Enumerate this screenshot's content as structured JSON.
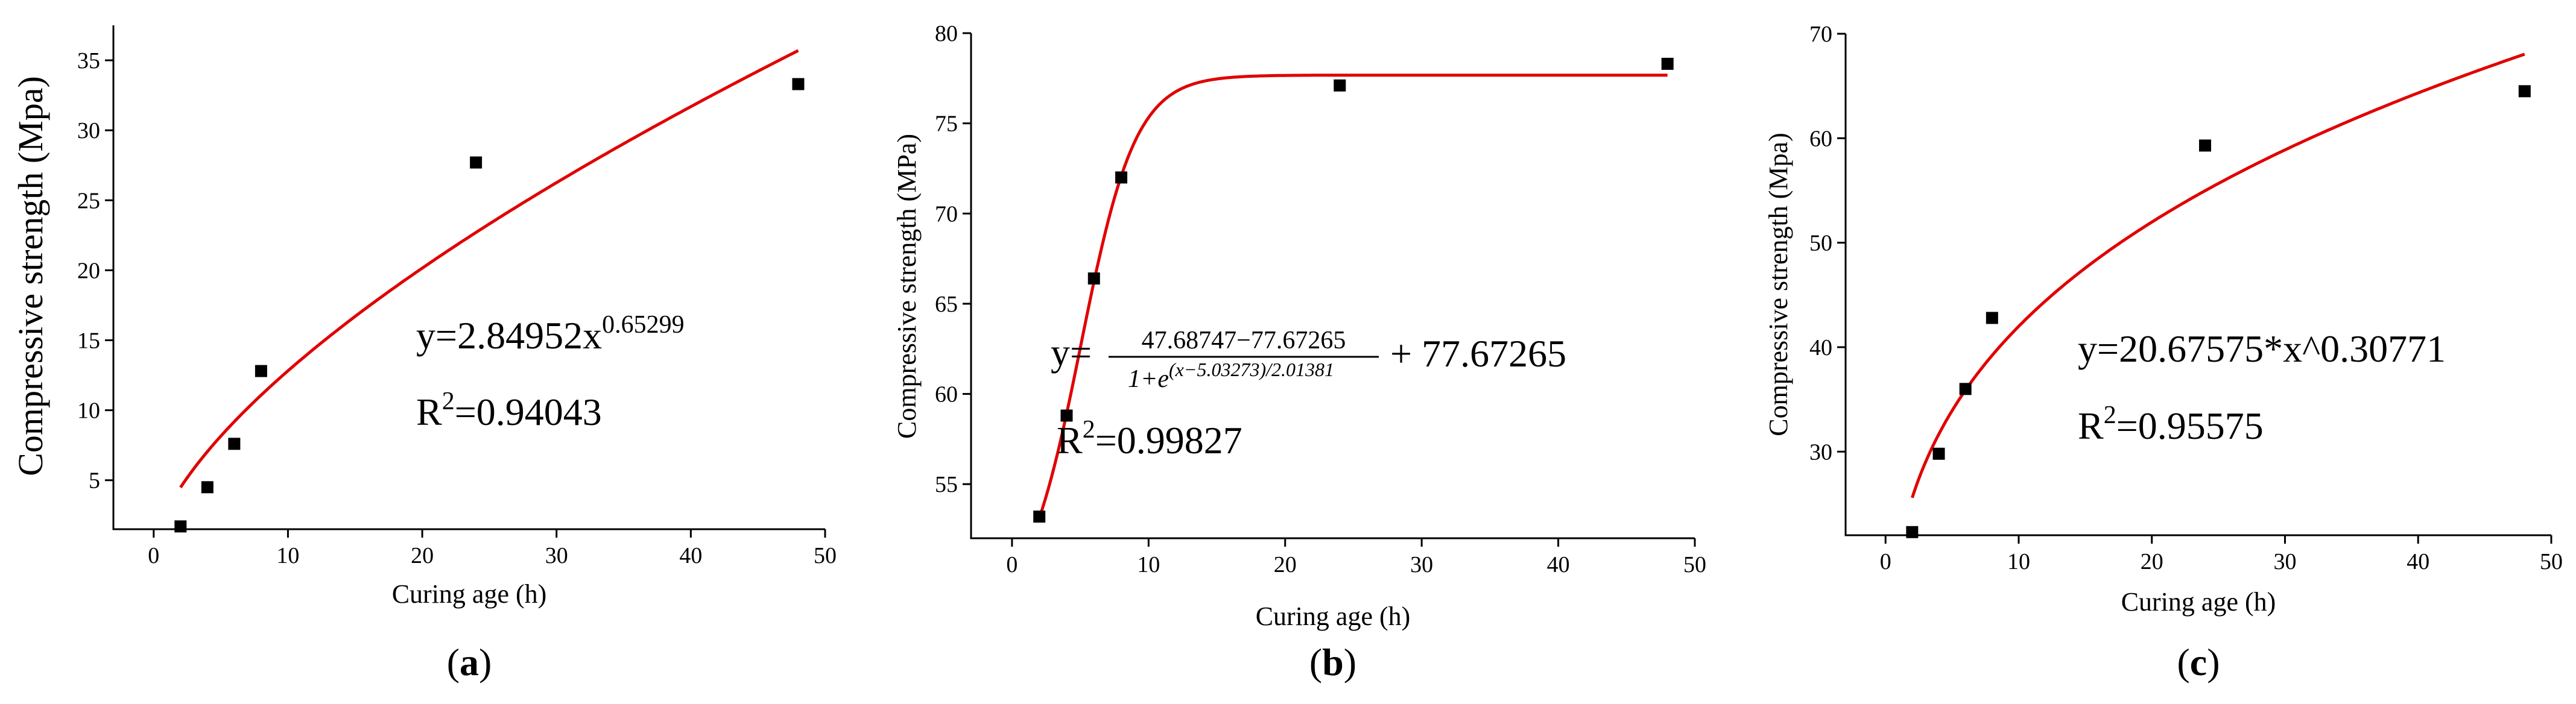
{
  "chart_data": [
    {
      "type": "scatter",
      "panel_label": "a",
      "xlabel": "Curing age (h)",
      "ylabel": "Compressive strength (Mpa)",
      "xlim": [
        -3,
        50
      ],
      "ylim": [
        1.5,
        37.5
      ],
      "xticks": [
        0,
        10,
        20,
        30,
        40,
        50
      ],
      "yticks": [
        5,
        10,
        15,
        20,
        25,
        30,
        35
      ],
      "series": [
        {
          "type": "scatter",
          "marker": "square",
          "color": "#000000",
          "x": [
            2,
            4,
            6,
            8,
            24,
            48
          ],
          "y": [
            1.7,
            4.5,
            7.6,
            12.8,
            27.7,
            33.3
          ]
        },
        {
          "type": "line",
          "color": "#e00000",
          "fit": "power",
          "params": {
            "a": 2.84952,
            "b": 0.65299
          },
          "x_range": [
            2,
            48
          ]
        }
      ],
      "annotation": {
        "equation_prefix": "y=2.84952x",
        "equation_exponent": "0.65299",
        "r2_prefix": "R",
        "r2_sup": "2",
        "r2_value": "=0.94043"
      }
    },
    {
      "type": "scatter",
      "panel_label": "b",
      "xlabel": "Curing age (h)",
      "ylabel": "Compressive strength (MPa)",
      "xlim": [
        -3,
        50
      ],
      "ylim": [
        52,
        80
      ],
      "xticks": [
        0,
        10,
        20,
        30,
        40,
        50
      ],
      "yticks": [
        55,
        60,
        65,
        70,
        75,
        80
      ],
      "series": [
        {
          "type": "scatter",
          "marker": "square",
          "color": "#000000",
          "x": [
            2,
            4,
            6,
            8,
            24,
            48
          ],
          "y": [
            53.2,
            58.8,
            66.4,
            72.0,
            77.1,
            78.3
          ]
        },
        {
          "type": "line",
          "color": "#e00000",
          "fit": "boltzmann",
          "params": {
            "A1": 47.68747,
            "A2": 77.67265,
            "x0": 5.03273,
            "dx": 2.01381
          },
          "x_range": [
            2,
            48
          ]
        }
      ],
      "annotation": {
        "equation_lhs": "y=",
        "numerator": "47.68747−77.67265",
        "denominator_prefix": "1+e",
        "denominator_exp": "(x−5.03273)/2.01381",
        "equation_tail": "+ 77.67265",
        "r2_prefix": "R",
        "r2_sup": "2",
        "r2_value": "=0.99827"
      }
    },
    {
      "type": "scatter",
      "panel_label": "c",
      "xlabel": "Curing age (h)",
      "ylabel": "Compressive strength (Mpa)",
      "xlim": [
        -3,
        50
      ],
      "ylim": [
        22,
        70
      ],
      "xticks": [
        0,
        10,
        20,
        30,
        40,
        50
      ],
      "yticks": [
        30,
        40,
        50,
        60,
        70
      ],
      "series": [
        {
          "type": "scatter",
          "marker": "square",
          "color": "#000000",
          "x": [
            2,
            4,
            6,
            8,
            24,
            48
          ],
          "y": [
            22.3,
            29.8,
            36.0,
            42.8,
            59.3,
            64.5
          ]
        },
        {
          "type": "line",
          "color": "#e00000",
          "fit": "power",
          "params": {
            "a": 20.67575,
            "b": 0.30771
          },
          "x_range": [
            2,
            48
          ]
        }
      ],
      "annotation": {
        "equation": "y=20.67575*x^0.30771",
        "r2_prefix": "R",
        "r2_sup": "2",
        "r2_value": "=0.95575"
      }
    }
  ]
}
